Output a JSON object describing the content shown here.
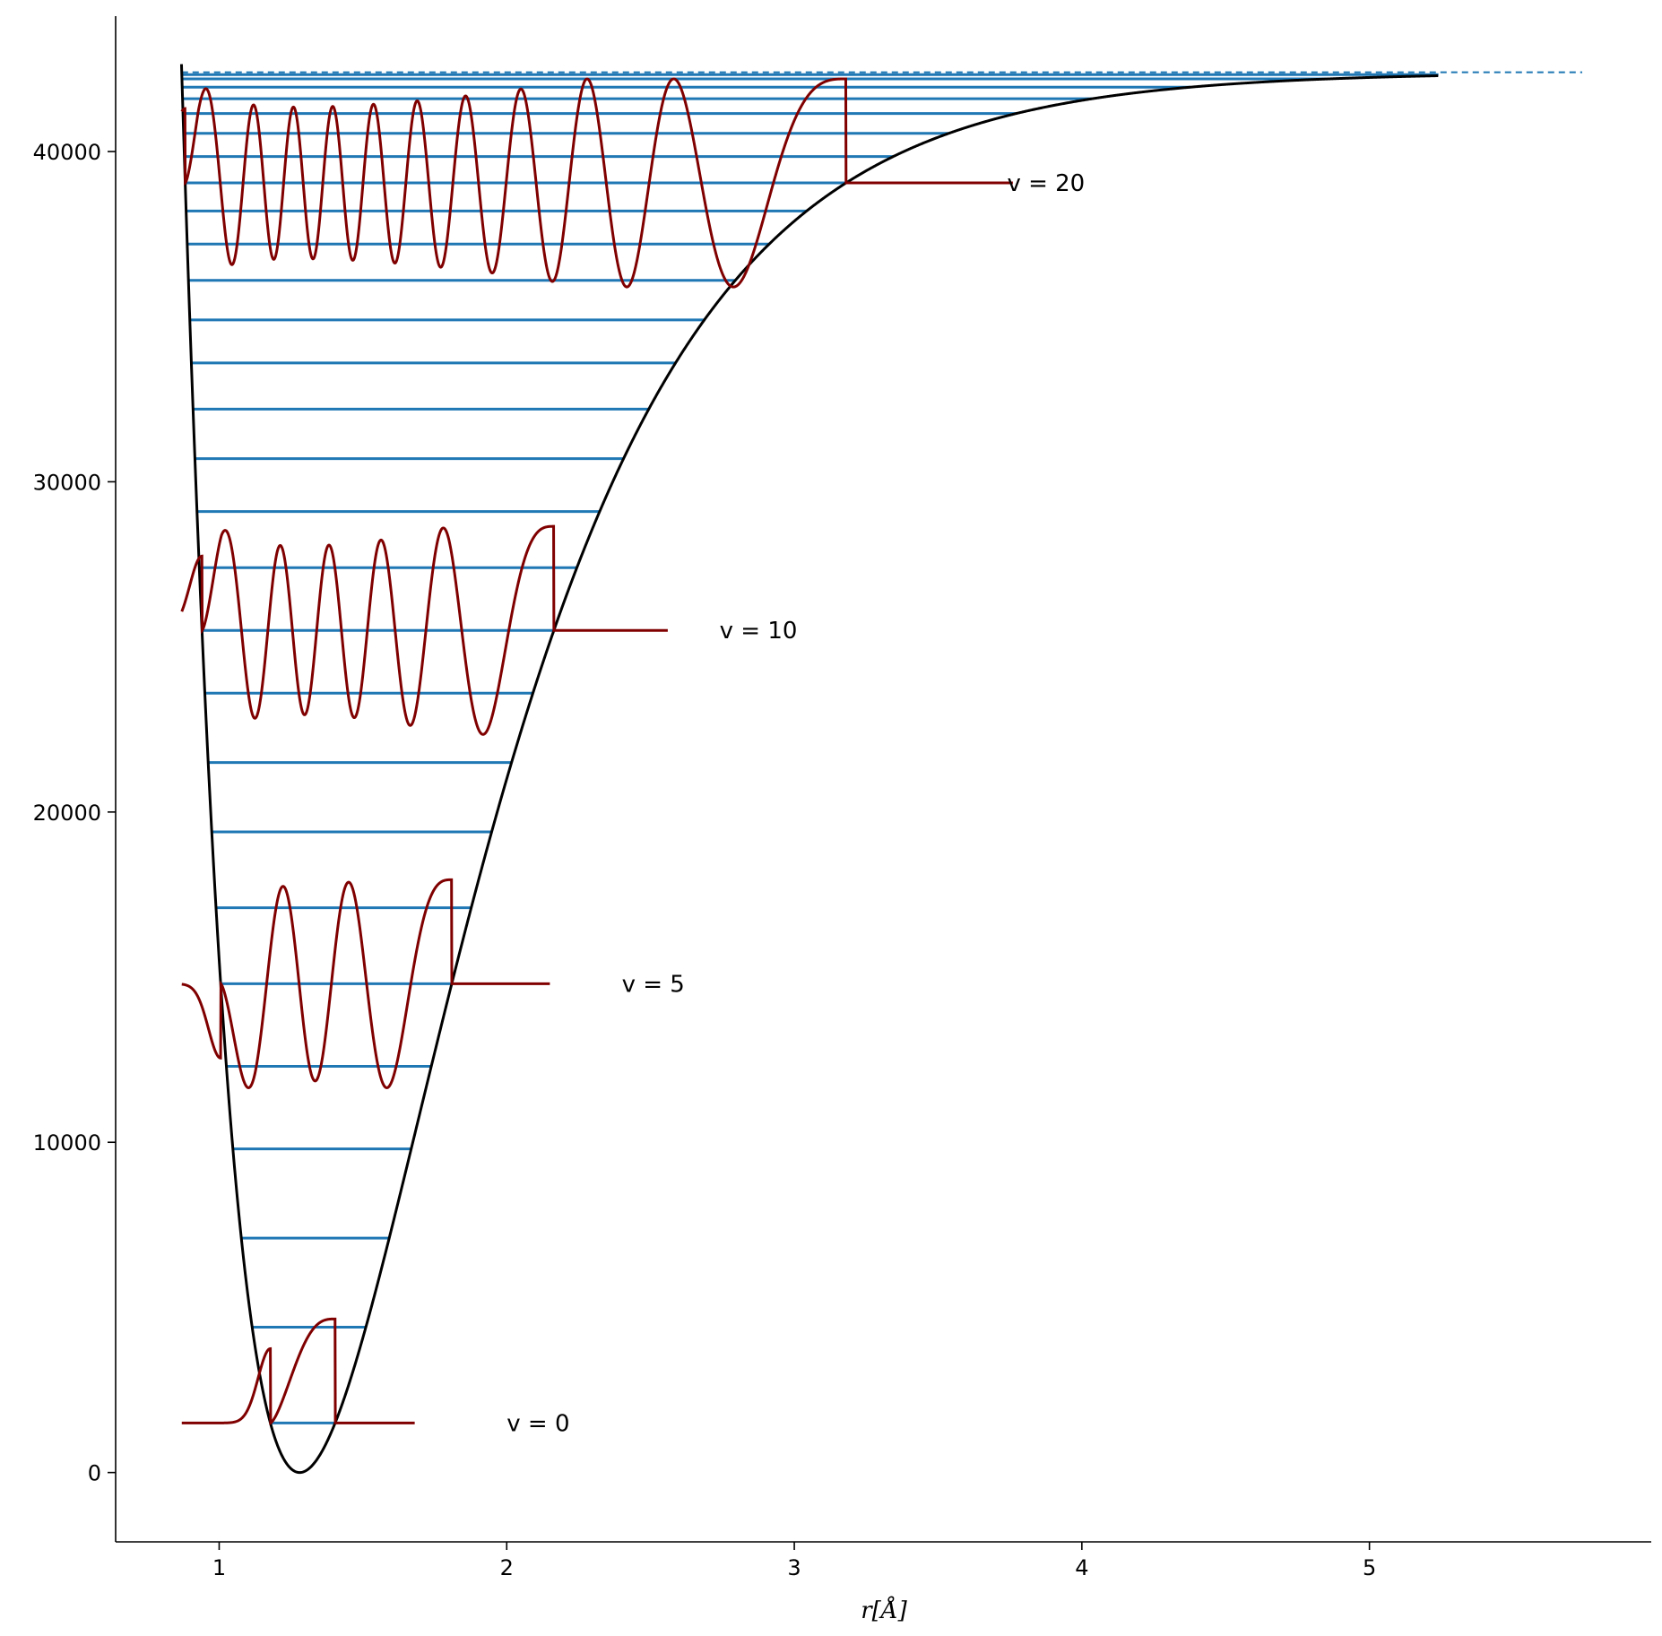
{
  "chart_data": {
    "type": "line",
    "title": "",
    "xlabel": "r[Å]",
    "ylabel": "",
    "xlim": [
      0.64,
      5.98
    ],
    "ylim": [
      -2100,
      44100
    ],
    "xticks": [
      1,
      2,
      3,
      4,
      5
    ],
    "yticks": [
      0,
      10000,
      20000,
      30000,
      40000
    ],
    "grid": false,
    "legend": "none",
    "potential": {
      "model": "Morse",
      "De": 42400,
      "re": 1.28,
      "a": 1.69
    },
    "levels": [
      {
        "v": 0,
        "energy": 1500
      },
      {
        "v": 1,
        "energy": 4400
      },
      {
        "v": 2,
        "energy": 7100
      },
      {
        "v": 3,
        "energy": 9800
      },
      {
        "v": 4,
        "energy": 12300
      },
      {
        "v": 5,
        "energy": 14800
      },
      {
        "v": 6,
        "energy": 17100
      },
      {
        "v": 7,
        "energy": 19400
      },
      {
        "v": 8,
        "energy": 21500
      },
      {
        "v": 9,
        "energy": 23600
      },
      {
        "v": 10,
        "energy": 25500
      },
      {
        "v": 11,
        "energy": 27400
      },
      {
        "v": 12,
        "energy": 29100
      },
      {
        "v": 13,
        "energy": 30700
      },
      {
        "v": 14,
        "energy": 32200
      },
      {
        "v": 15,
        "energy": 33600
      },
      {
        "v": 16,
        "energy": 34900
      },
      {
        "v": 17,
        "energy": 36100
      },
      {
        "v": 18,
        "energy": 37200
      },
      {
        "v": 19,
        "energy": 38200
      },
      {
        "v": 20,
        "energy": 39050
      },
      {
        "v": 21,
        "energy": 39850
      },
      {
        "v": 22,
        "energy": 40550
      },
      {
        "v": 23,
        "energy": 41150
      },
      {
        "v": 24,
        "energy": 41600
      },
      {
        "v": 25,
        "energy": 41950
      },
      {
        "v": 26,
        "energy": 42200
      },
      {
        "v": 27,
        "energy": 42330
      }
    ],
    "dissociation_line": {
      "energy": 42400,
      "x_start": 0.87,
      "x_end": 5.74
    },
    "wavefunctions": [
      {
        "v": 0,
        "label": "v = 0",
        "baseline": 1500,
        "amplitude": 3000,
        "x_start": 0.87,
        "x_end": 1.68,
        "label_x": 2.0,
        "label_y": 1500
      },
      {
        "v": 5,
        "label": "v = 5",
        "baseline": 14800,
        "amplitude": 3000,
        "x_start": 0.87,
        "x_end": 2.15,
        "label_x": 2.4,
        "label_y": 14800
      },
      {
        "v": 10,
        "label": "v = 10",
        "baseline": 25500,
        "amplitude": 3000,
        "x_start": 0.87,
        "x_end": 2.56,
        "label_x": 2.74,
        "label_y": 25500
      },
      {
        "v": 20,
        "label": "v = 20",
        "baseline": 39050,
        "amplitude": 3000,
        "x_start": 0.87,
        "x_end": 3.76,
        "label_x": 3.74,
        "label_y": 39050
      }
    ],
    "colors": {
      "potential": "#000000",
      "levels": "#1f77b4",
      "wavefunction": "#800000"
    }
  }
}
